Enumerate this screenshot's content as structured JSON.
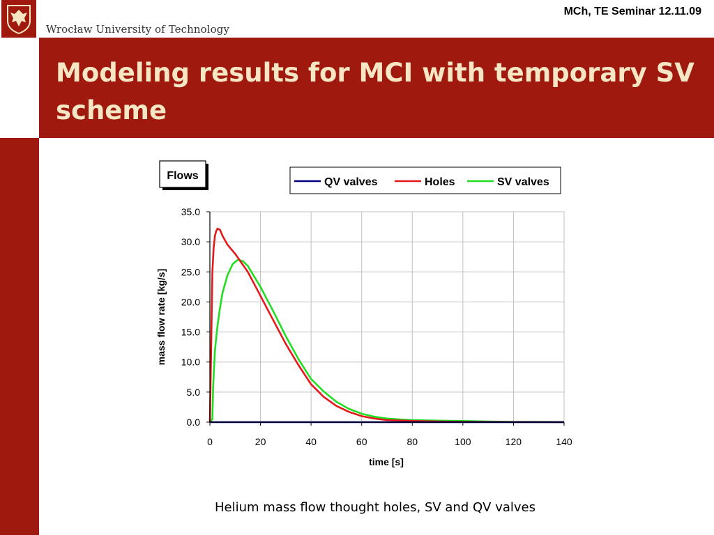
{
  "header": {
    "university": "Wrocław University of Technology",
    "seminar": "MCh, TE Seminar 12.11.09",
    "logo": "eagle-crest-icon"
  },
  "slide": {
    "title": "Modeling results for MCI with temporary SV scheme",
    "caption": "Helium mass flow thought holes, SV and QV valves"
  },
  "colors": {
    "brand": "#a0190f",
    "title_text": "#f7e6c4",
    "grid": "#c0c0c0"
  },
  "chart_data": {
    "type": "line",
    "title": "Flows",
    "xlabel": "time [s]",
    "ylabel": "mass flow rate [kg/s]",
    "xlim": [
      0,
      140
    ],
    "ylim": [
      0,
      35
    ],
    "x_ticks": [
      "0",
      "20",
      "40",
      "60",
      "80",
      "100",
      "120",
      "140"
    ],
    "y_ticks": [
      "0.0",
      "5.0",
      "10.0",
      "15.0",
      "20.0",
      "25.0",
      "30.0",
      "35.0"
    ],
    "grid": true,
    "legend_position": "top",
    "series": [
      {
        "name": "QV valves",
        "color": "#000080",
        "points": [
          [
            0,
            0
          ],
          [
            20,
            0
          ],
          [
            40,
            0
          ],
          [
            60,
            0
          ],
          [
            80,
            0
          ],
          [
            100,
            0
          ],
          [
            120,
            0
          ],
          [
            140,
            0
          ]
        ]
      },
      {
        "name": "Holes",
        "color": "#e31a1c",
        "points": [
          [
            0,
            0
          ],
          [
            0.5,
            12
          ],
          [
            1,
            25
          ],
          [
            1.5,
            29
          ],
          [
            2,
            31
          ],
          [
            2.5,
            31.8
          ],
          [
            3,
            32.2
          ],
          [
            4,
            32
          ],
          [
            5,
            31
          ],
          [
            7,
            29.5
          ],
          [
            10,
            28
          ],
          [
            15,
            25
          ],
          [
            20,
            21
          ],
          [
            25,
            17
          ],
          [
            30,
            13
          ],
          [
            35,
            9.5
          ],
          [
            40,
            6.3
          ],
          [
            45,
            4.2
          ],
          [
            50,
            2.7
          ],
          [
            55,
            1.7
          ],
          [
            60,
            1.0
          ],
          [
            65,
            0.6
          ],
          [
            70,
            0.35
          ],
          [
            80,
            0.2
          ],
          [
            90,
            0.1
          ],
          [
            100,
            0.05
          ],
          [
            120,
            0.02
          ],
          [
            140,
            0
          ]
        ]
      },
      {
        "name": "SV valves",
        "color": "#22dd22",
        "points": [
          [
            0,
            0
          ],
          [
            1,
            0.5
          ],
          [
            1.3,
            6
          ],
          [
            2,
            12
          ],
          [
            3,
            16
          ],
          [
            4,
            19
          ],
          [
            5,
            21.5
          ],
          [
            7,
            24.5
          ],
          [
            9,
            26.3
          ],
          [
            11,
            27
          ],
          [
            13,
            26.8
          ],
          [
            15,
            26
          ],
          [
            20,
            22.5
          ],
          [
            25,
            18.5
          ],
          [
            30,
            14.3
          ],
          [
            35,
            10.5
          ],
          [
            40,
            7.2
          ],
          [
            45,
            5.1
          ],
          [
            50,
            3.4
          ],
          [
            55,
            2.2
          ],
          [
            60,
            1.4
          ],
          [
            65,
            0.9
          ],
          [
            70,
            0.6
          ],
          [
            75,
            0.45
          ],
          [
            80,
            0.35
          ],
          [
            90,
            0.25
          ],
          [
            100,
            0.2
          ],
          [
            110,
            0.1
          ],
          [
            120,
            0.06
          ],
          [
            140,
            0.02
          ]
        ]
      }
    ]
  }
}
